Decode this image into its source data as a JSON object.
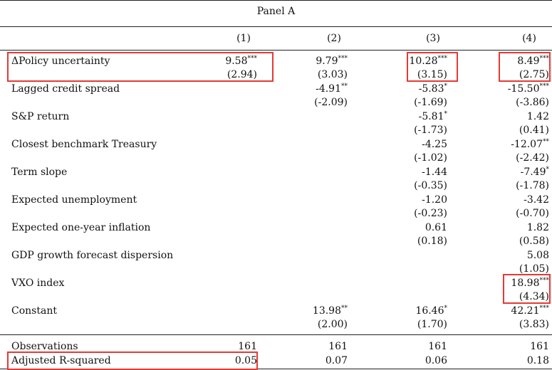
{
  "panel_title": "Panel A",
  "columns": [
    "(1)",
    "(2)",
    "(3)",
    "(4)"
  ],
  "rows": [
    {
      "label": "ΔPolicy uncertainty",
      "coef": [
        {
          "v": "9.58",
          "s": "***"
        },
        {
          "v": "9.79",
          "s": "***"
        },
        {
          "v": "10.28",
          "s": "***"
        },
        {
          "v": "8.49",
          "s": "***"
        }
      ],
      "t": [
        "(2.94)",
        "(3.03)",
        "(3.15)",
        "(2.75)"
      ]
    },
    {
      "label": "Lagged credit spread",
      "coef": [
        null,
        {
          "v": "-4.91",
          "s": "**"
        },
        {
          "v": "-5.83",
          "s": "*"
        },
        {
          "v": "-15.50",
          "s": "***"
        }
      ],
      "t": [
        null,
        "(-2.09)",
        "(-1.69)",
        "(-3.86)"
      ]
    },
    {
      "label": "S&P return",
      "coef": [
        null,
        null,
        {
          "v": "-5.81",
          "s": "*"
        },
        {
          "v": "1.42",
          "s": ""
        }
      ],
      "t": [
        null,
        null,
        "(-1.73)",
        "(0.41)"
      ]
    },
    {
      "label": "Closest benchmark Treasury",
      "coef": [
        null,
        null,
        {
          "v": "-4.25",
          "s": ""
        },
        {
          "v": "-12.07",
          "s": "**"
        }
      ],
      "t": [
        null,
        null,
        "(-1.02)",
        "(-2.42)"
      ]
    },
    {
      "label": "Term slope",
      "coef": [
        null,
        null,
        {
          "v": "-1.44",
          "s": ""
        },
        {
          "v": "-7.49",
          "s": "*"
        }
      ],
      "t": [
        null,
        null,
        "(-0.35)",
        "(-1.78)"
      ]
    },
    {
      "label": "Expected unemployment",
      "coef": [
        null,
        null,
        {
          "v": "-1.20",
          "s": ""
        },
        {
          "v": "-3.42",
          "s": ""
        }
      ],
      "t": [
        null,
        null,
        "(-0.23)",
        "(-0.70)"
      ]
    },
    {
      "label": "Expected one-year inflation",
      "coef": [
        null,
        null,
        {
          "v": "0.61",
          "s": ""
        },
        {
          "v": "1.82",
          "s": ""
        }
      ],
      "t": [
        null,
        null,
        "(0.18)",
        "(0.58)"
      ]
    },
    {
      "label": "GDP growth forecast dispersion",
      "coef": [
        null,
        null,
        null,
        {
          "v": "5.08",
          "s": ""
        }
      ],
      "t": [
        null,
        null,
        null,
        "(1.05)"
      ]
    },
    {
      "label": "VXO index",
      "coef": [
        null,
        null,
        null,
        {
          "v": "18.98",
          "s": "***"
        }
      ],
      "t": [
        null,
        null,
        null,
        "(4.34)"
      ]
    },
    {
      "label": "Constant",
      "coef": [
        null,
        {
          "v": "13.98",
          "s": "**"
        },
        {
          "v": "16.46",
          "s": "*"
        },
        {
          "v": "42.21",
          "s": "***"
        }
      ],
      "t": [
        null,
        "(2.00)",
        "(1.70)",
        "(3.83)"
      ]
    }
  ],
  "observations": {
    "label": "Observations",
    "values": [
      "161",
      "161",
      "161",
      "161"
    ]
  },
  "adj_r2": {
    "label": "Adjusted R-squared",
    "values": [
      "0.05",
      "0.07",
      "0.06",
      "0.18"
    ]
  },
  "highlight_color": "#e53935"
}
